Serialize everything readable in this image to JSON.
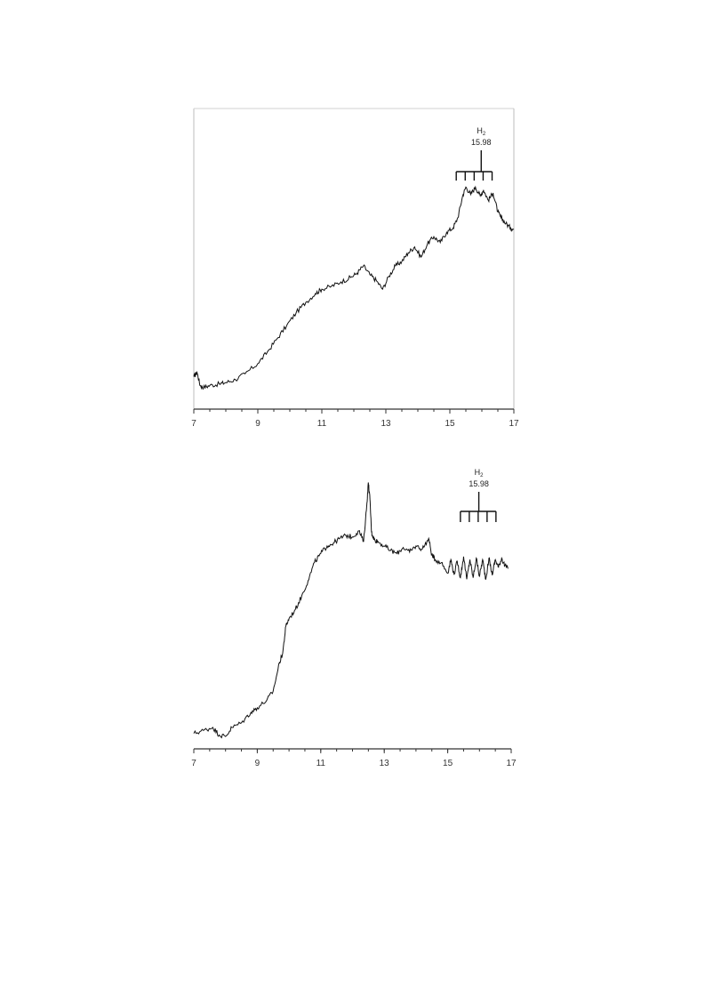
{
  "chart_data": [
    {
      "type": "line",
      "title": "",
      "xlabel": "",
      "ylabel": "",
      "xlim": [
        7,
        17
      ],
      "ylim": [
        0,
        100
      ],
      "x_ticks": [
        "7",
        "9",
        "11",
        "13",
        "15",
        "17"
      ],
      "frame": "left-top-right",
      "grid": false,
      "annotation": {
        "label": "H",
        "subscript": "2",
        "value": "15.98",
        "x": 15.98,
        "comb_x": [
          15.2,
          15.48,
          15.76,
          16.04,
          16.32
        ]
      },
      "series": [
        {
          "x": [
            7.0,
            7.1,
            7.2,
            7.3,
            7.5,
            7.8,
            8.0,
            8.3,
            8.6,
            9.0,
            9.3,
            9.6,
            9.9,
            10.2,
            10.5,
            10.8,
            11.0,
            11.3,
            11.6,
            11.9,
            12.1,
            12.3,
            12.5,
            12.7,
            12.9,
            13.1,
            13.3,
            13.5,
            13.7,
            13.9,
            14.1,
            14.3,
            14.5,
            14.7,
            14.9,
            15.1,
            15.25,
            15.4,
            15.5,
            15.65,
            15.8,
            15.95,
            16.05,
            16.2,
            16.35,
            16.5,
            16.6,
            16.75,
            16.9,
            17.0
          ],
          "y": [
            10.5,
            12.0,
            7.5,
            6.8,
            7.5,
            8.0,
            8.5,
            9.5,
            11.5,
            15.0,
            19.0,
            23.5,
            28.0,
            32.5,
            36.0,
            39.0,
            40.5,
            41.5,
            43.0,
            44.5,
            46.0,
            48.5,
            45.5,
            43.5,
            40.5,
            45.0,
            48.5,
            50.0,
            53.0,
            55.0,
            51.5,
            56.0,
            58.5,
            56.5,
            60.0,
            61.5,
            65.0,
            72.5,
            75.5,
            73.0,
            75.5,
            72.5,
            74.5,
            71.0,
            73.5,
            67.0,
            65.0,
            63.0,
            61.5,
            61.0
          ]
        }
      ]
    },
    {
      "type": "line",
      "title": "",
      "xlabel": "",
      "ylabel": "",
      "xlim": [
        7,
        17
      ],
      "ylim": [
        0,
        100
      ],
      "x_ticks": [
        "7",
        "9",
        "11",
        "13",
        "15",
        "17"
      ],
      "frame": "none",
      "grid": false,
      "annotation": {
        "label": "H",
        "subscript": "2",
        "value": "15.98",
        "x": 15.98,
        "comb_x": [
          15.4,
          15.68,
          15.96,
          16.24,
          16.52
        ]
      },
      "series": [
        {
          "x": [
            7.0,
            7.3,
            7.6,
            7.8,
            8.0,
            8.2,
            8.5,
            8.8,
            9.0,
            9.3,
            9.5,
            9.7,
            9.8,
            9.9,
            10.0,
            10.2,
            10.4,
            10.6,
            10.8,
            11.0,
            11.2,
            11.4,
            11.6,
            11.8,
            12.0,
            12.2,
            12.35,
            12.45,
            12.5,
            12.55,
            12.6,
            12.65,
            12.7,
            12.8,
            13.0,
            13.2,
            13.4,
            13.6,
            13.8,
            14.0,
            14.2,
            14.4,
            14.5,
            14.6,
            14.8,
            15.0,
            15.1,
            15.2,
            15.3,
            15.4,
            15.5,
            15.6,
            15.7,
            15.8,
            15.9,
            16.0,
            16.1,
            16.2,
            16.3,
            16.4,
            16.5,
            16.6,
            16.7,
            16.8,
            16.9
          ],
          "y": [
            4.5,
            5.5,
            6.5,
            4.0,
            3.5,
            6.5,
            8.0,
            11.5,
            13.0,
            15.5,
            18.5,
            28.0,
            31.0,
            40.0,
            42.5,
            45.5,
            50.0,
            55.0,
            61.0,
            64.0,
            66.5,
            67.5,
            69.0,
            70.0,
            69.5,
            71.5,
            68.0,
            80.0,
            87.5,
            82.0,
            71.0,
            69.5,
            68.5,
            68.0,
            66.5,
            65.0,
            64.0,
            66.0,
            64.5,
            66.5,
            65.5,
            69.0,
            63.5,
            62.0,
            61.0,
            57.5,
            62.0,
            57.0,
            61.5,
            56.0,
            63.0,
            55.5,
            62.0,
            56.0,
            62.5,
            56.5,
            62.0,
            55.5,
            62.5,
            57.0,
            62.0,
            59.5,
            62.5,
            60.0,
            59.0
          ]
        }
      ]
    }
  ]
}
